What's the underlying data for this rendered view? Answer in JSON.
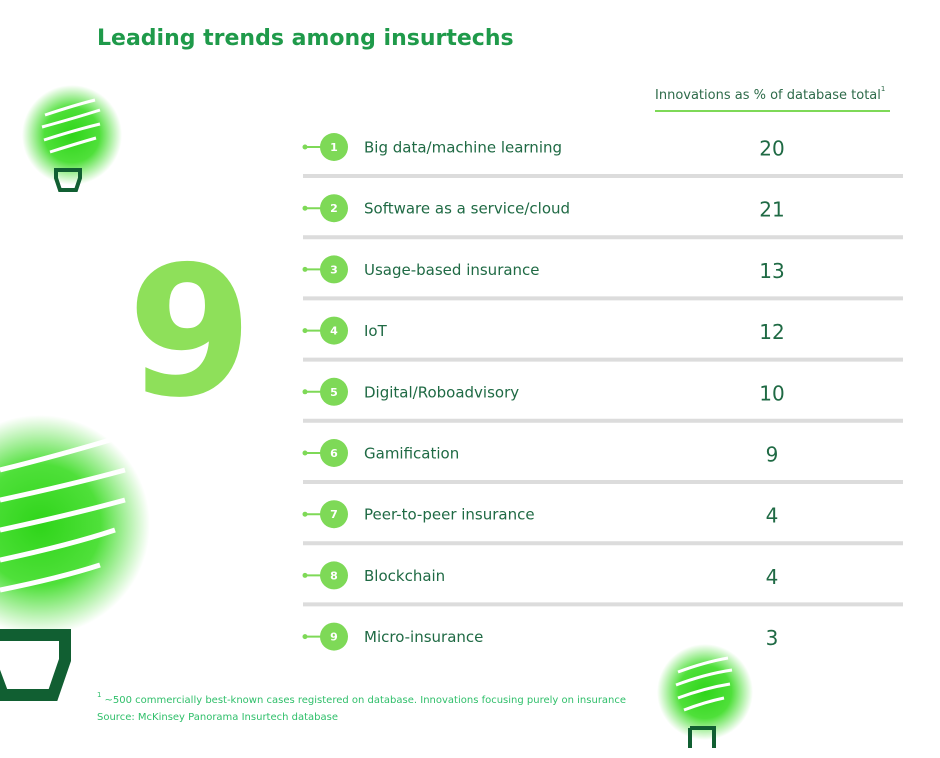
{
  "title": "Leading trends among insurtechs",
  "big_number": 9,
  "column_header": "Innovations as % of database total",
  "rows": [
    {
      "rank": 1,
      "label": "Big data/machine learning",
      "value": 20
    },
    {
      "rank": 2,
      "label": "Software as a service/cloud",
      "value": 21
    },
    {
      "rank": 3,
      "label": "Usage-based insurance",
      "value": 13
    },
    {
      "rank": 4,
      "label": "IoT",
      "value": 12
    },
    {
      "rank": 5,
      "label": "Digital/Roboadvisory",
      "value": 10
    },
    {
      "rank": 6,
      "label": "Gamification",
      "value": 9
    },
    {
      "rank": 7,
      "label": "Peer-to-peer insurance",
      "value": 4
    },
    {
      "rank": 8,
      "label": "Blockchain",
      "value": 4
    },
    {
      "rank": 9,
      "label": "Micro-insurance",
      "value": 3
    }
  ],
  "footnote": {
    "marker": "1",
    "text": "~500 commercially best-known cases registered on database. Innovations focusing purely on insurance"
  },
  "source": "Source: McKinsey Panorama Insurtech database"
}
